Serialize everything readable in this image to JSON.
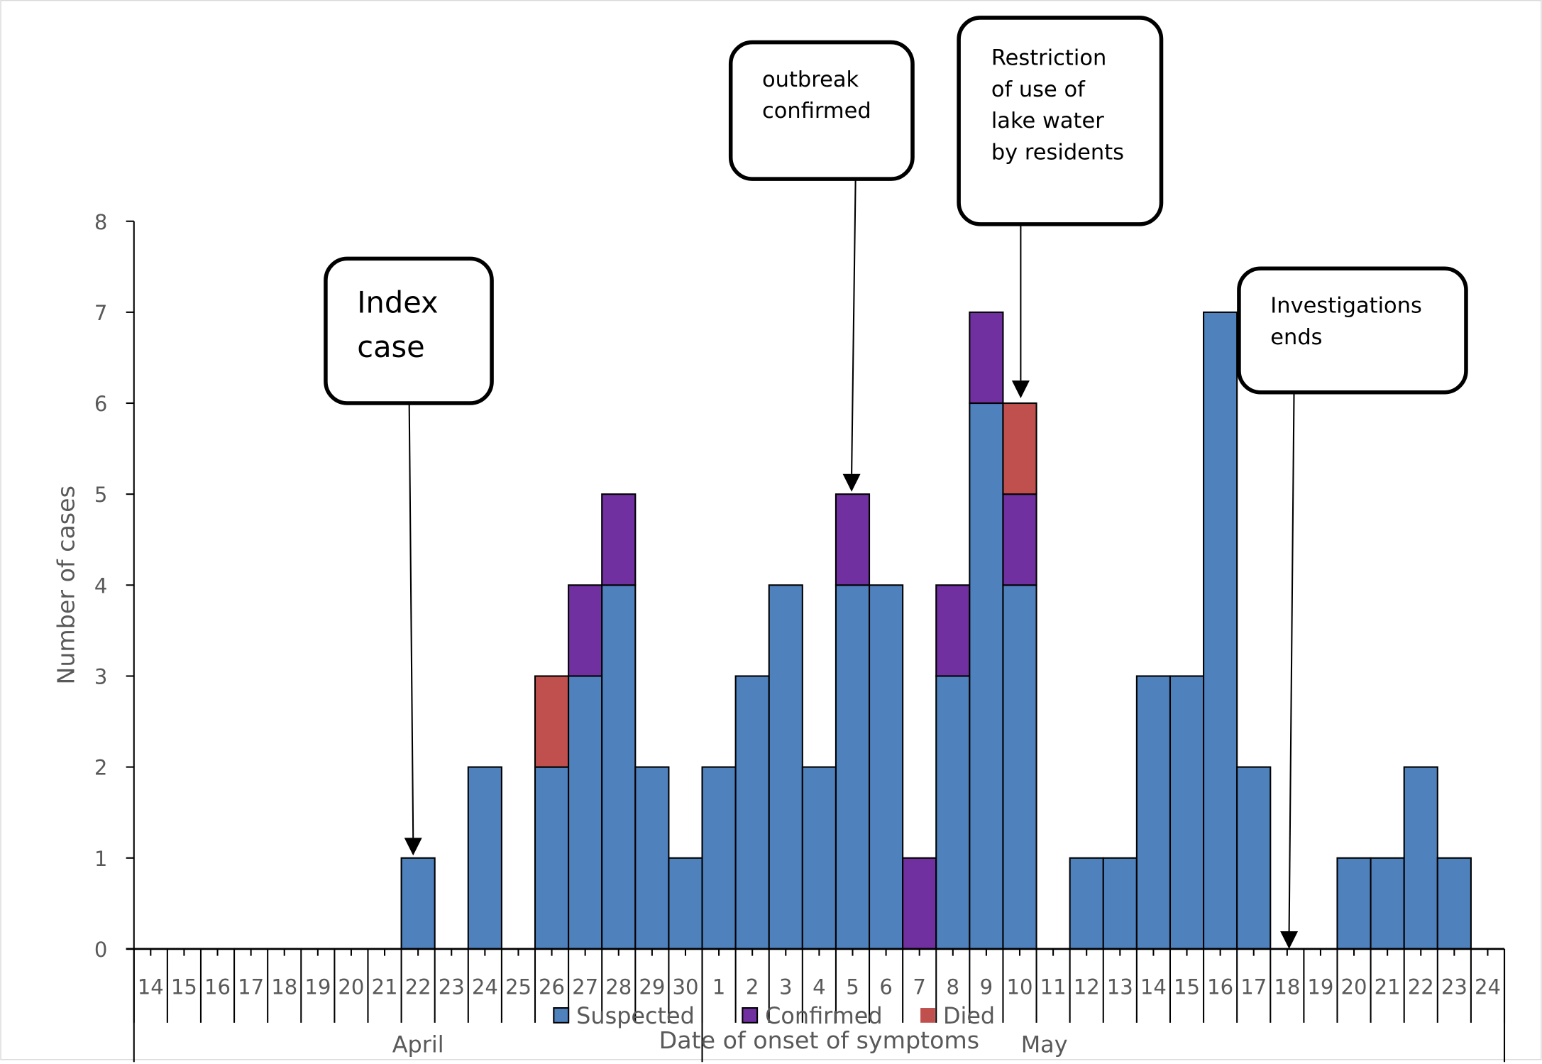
{
  "chart_data": {
    "type": "bar",
    "stacked": true,
    "title": "",
    "xlabel": "Date of onset of symptoms",
    "ylabel": "Number of cases",
    "ylim": [
      0,
      8
    ],
    "yticks": [
      "0",
      "1",
      "2",
      "3",
      "4",
      "5",
      "6",
      "7",
      "8"
    ],
    "grid": false,
    "legend_position": "bottom",
    "months": [
      {
        "label": "April",
        "days": 17
      },
      {
        "label": "May",
        "days": 24
      }
    ],
    "categories": [
      "14",
      "15",
      "16",
      "17",
      "18",
      "19",
      "20",
      "21",
      "22",
      "23",
      "24",
      "25",
      "26",
      "27",
      "28",
      "29",
      "30",
      "1",
      "2",
      "3",
      "4",
      "5",
      "6",
      "7",
      "8",
      "9",
      "10",
      "11",
      "12",
      "13",
      "14",
      "15",
      "16",
      "17",
      "18",
      "19",
      "20",
      "21",
      "22",
      "23",
      "24"
    ],
    "series": [
      {
        "name": "Suspected",
        "color": "#4f81bd",
        "values": [
          0,
          0,
          0,
          0,
          0,
          0,
          0,
          0,
          1,
          0,
          2,
          0,
          2,
          3,
          4,
          2,
          1,
          2,
          3,
          4,
          2,
          4,
          4,
          0,
          3,
          6,
          4,
          0,
          1,
          1,
          3,
          3,
          7,
          2,
          0,
          0,
          1,
          1,
          2,
          1,
          0
        ]
      },
      {
        "name": "Confirmed",
        "color": "#7030a0",
        "values": [
          0,
          0,
          0,
          0,
          0,
          0,
          0,
          0,
          0,
          0,
          0,
          0,
          0,
          1,
          1,
          0,
          0,
          0,
          0,
          0,
          0,
          1,
          0,
          1,
          1,
          1,
          1,
          0,
          0,
          0,
          0,
          0,
          0,
          0,
          0,
          0,
          0,
          0,
          0,
          0,
          0
        ]
      },
      {
        "name": "Died",
        "color": "#c0504d",
        "values": [
          0,
          0,
          0,
          0,
          0,
          0,
          0,
          0,
          0,
          0,
          0,
          0,
          1,
          0,
          0,
          0,
          0,
          0,
          0,
          0,
          0,
          0,
          0,
          0,
          0,
          0,
          1,
          0,
          0,
          0,
          0,
          0,
          0,
          0,
          0,
          0,
          0,
          0,
          0,
          0,
          0
        ]
      }
    ],
    "annotations": [
      {
        "lines": [
          "Index",
          "case"
        ],
        "target_category_index": 8
      },
      {
        "lines": [
          "outbreak",
          "confirmed"
        ],
        "target_category_index": 21
      },
      {
        "lines": [
          "Restriction",
          "of use of",
          "lake water",
          "by residents"
        ],
        "target_category_index": 26
      },
      {
        "lines": [
          "Investigations",
          "ends"
        ],
        "target_category_index": 34
      }
    ]
  }
}
